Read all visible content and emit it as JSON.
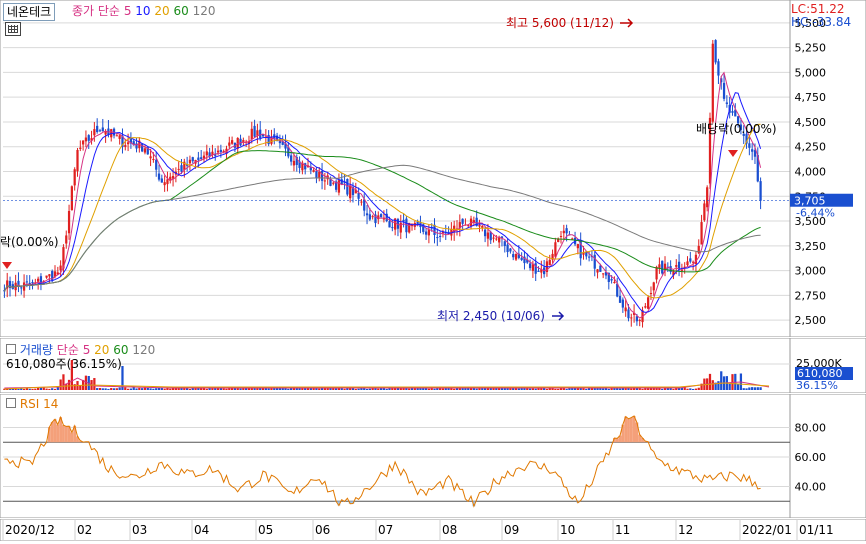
{
  "header": {
    "stock_name": "네온테크",
    "legend_label": "종가 단순",
    "ma_periods": [
      "5",
      "10",
      "20",
      "60",
      "120"
    ],
    "ma_colors": [
      "#d63384",
      "#1a1aff",
      "#e0a000",
      "#1a8c1a",
      "#7a7a7a"
    ]
  },
  "price_panel": {
    "lc_label": "LC:51.22",
    "hc_label": "HC:-33.84",
    "current_price": "3,705",
    "change_pct": "-6.44%",
    "high_annotation": "최고 5,600 (11/12)",
    "low_annotation": "최저 2,450 (10/06)",
    "dividend_annotation": "배당락(0.00%)",
    "dividend_annotation_left": "락(0.00%)",
    "y_ticks": [
      "5,500",
      "5,250",
      "5,000",
      "4,750",
      "4,500",
      "4,250",
      "4,000",
      "3,750",
      "3,500",
      "3,250",
      "3,000",
      "2,750",
      "2,500"
    ]
  },
  "volume_panel": {
    "legend_label": "거래량",
    "legend_ma": "단순",
    "ma_periods": [
      "5",
      "20",
      "60",
      "120"
    ],
    "current_text": "610,080주(36.15%)",
    "y_tick": "25,000K",
    "current_value": "610,080",
    "current_pct": "36.15%"
  },
  "rsi_panel": {
    "legend_label": "RSI 14",
    "y_ticks": [
      "80.00",
      "60.00",
      "40.00"
    ],
    "upper_line": 70,
    "lower_line": 30
  },
  "date_axis": {
    "labels": [
      "2020/12",
      "02",
      "03",
      "04",
      "05",
      "06",
      "07",
      "08",
      "09",
      "10",
      "11",
      "12",
      "2022/01",
      "01/11"
    ]
  },
  "colors": {
    "up": "#e02020",
    "down": "#1a4fd0",
    "rsi": "#e07800",
    "grid": "#d9d9d9"
  },
  "chart_data": [
    {
      "type": "candlestick",
      "title": "네온테크",
      "period": "2020/12 - 2022/01",
      "x_labels": [
        "2020/12",
        "02",
        "03",
        "04",
        "05",
        "06",
        "07",
        "08",
        "09",
        "10",
        "11",
        "12",
        "2022/01"
      ],
      "close_approx": [
        2850,
        4350,
        4150,
        4300,
        4000,
        3700,
        3450,
        3200,
        3050,
        2550,
        4200,
        4150,
        3705
      ],
      "high": {
        "value": 5600,
        "date": "11/12"
      },
      "low": {
        "value": 2450,
        "date": "10/06"
      },
      "ylim": [
        2350,
        5650
      ],
      "grid": true
    },
    {
      "type": "bar",
      "title": "거래량",
      "current": 610080,
      "unit": "주"
    },
    {
      "type": "line",
      "title": "RSI 14",
      "values_approx": [
        60,
        54,
        85,
        74,
        52,
        46,
        56,
        48,
        52,
        38,
        48,
        34,
        48,
        26,
        40,
        56,
        34,
        44,
        28,
        46,
        55,
        52,
        28,
        58,
        89,
        58,
        50,
        44,
        48,
        41
      ],
      "ylim": [
        20,
        100
      ],
      "reference_lines": [
        70,
        30
      ]
    }
  ]
}
